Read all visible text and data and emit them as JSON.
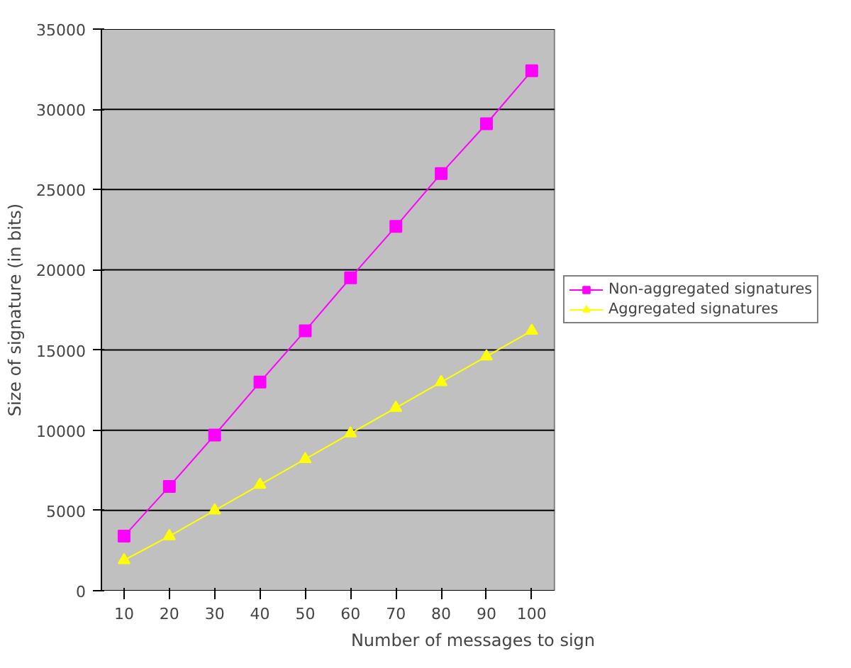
{
  "chart_data": {
    "type": "line",
    "xlabel": "Number of messages to sign",
    "ylabel": "Size of signature (in bits)",
    "categories": [
      "10",
      "20",
      "30",
      "40",
      "50",
      "60",
      "70",
      "80",
      "90",
      "100"
    ],
    "series": [
      {
        "name": "Non-aggregated signatures",
        "color": "#ff00ff",
        "marker": "square",
        "values": [
          3400,
          6500,
          9700,
          13000,
          16200,
          19500,
          22700,
          26000,
          29100,
          32400
        ]
      },
      {
        "name": "Aggregated signatures",
        "color": "#ffff00",
        "marker": "triangle",
        "values": [
          1900,
          3400,
          5000,
          6600,
          8200,
          9800,
          11400,
          13000,
          14600,
          16200
        ]
      }
    ],
    "ylim": [
      0,
      35000
    ],
    "yticks": [
      0,
      5000,
      10000,
      15000,
      20000,
      25000,
      30000,
      35000
    ],
    "grid": "y",
    "legend": "right",
    "line_style": "solid"
  }
}
